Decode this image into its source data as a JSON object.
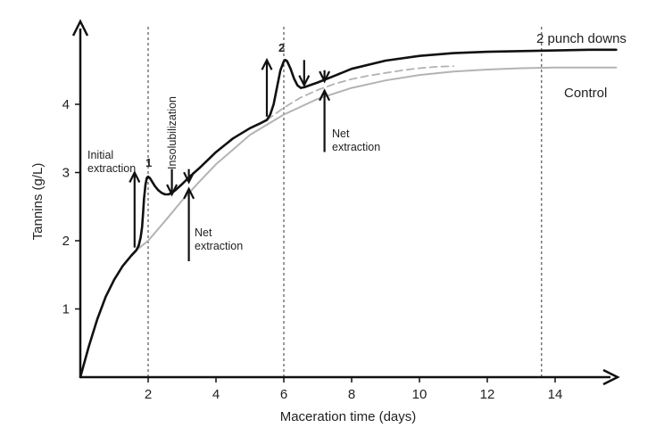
{
  "chart_data": {
    "type": "line",
    "title": "",
    "xlabel": "Maceration time (days)",
    "ylabel": "Tannins (g/L)",
    "xlim": [
      0,
      15.8
    ],
    "ylim": [
      0,
      5.2
    ],
    "x_ticks": [
      2,
      4,
      6,
      8,
      10,
      12,
      14
    ],
    "y_ticks": [
      1,
      2,
      3,
      4
    ],
    "grid": false,
    "reference_lines_x": [
      2,
      6,
      13.6
    ],
    "series": [
      {
        "name": "2 punch downs",
        "color": "#111111",
        "style": "solid",
        "x": [
          0,
          0.25,
          0.5,
          0.75,
          1.0,
          1.25,
          1.5,
          1.65,
          1.72,
          1.78,
          1.82,
          1.85,
          1.88,
          1.92,
          1.96,
          2.0,
          2.05,
          2.1,
          2.2,
          2.3,
          2.4,
          2.5,
          2.6,
          2.7,
          2.8,
          3.0,
          3.25,
          3.5,
          4.0,
          4.5,
          5.0,
          5.3,
          5.5,
          5.6,
          5.7,
          5.8,
          5.9,
          6.0,
          6.05,
          6.1,
          6.2,
          6.3,
          6.4,
          6.5,
          6.6,
          7.0,
          7.5,
          8.0,
          9.0,
          10.0,
          11.0,
          12.0,
          13.0,
          14.0,
          15.0,
          15.8
        ],
        "values": [
          0,
          0.45,
          0.85,
          1.18,
          1.43,
          1.63,
          1.78,
          1.86,
          1.93,
          2.05,
          2.2,
          2.4,
          2.62,
          2.82,
          2.92,
          2.94,
          2.92,
          2.88,
          2.8,
          2.74,
          2.7,
          2.68,
          2.68,
          2.7,
          2.74,
          2.83,
          2.95,
          3.06,
          3.3,
          3.5,
          3.65,
          3.72,
          3.77,
          3.85,
          4.0,
          4.25,
          4.5,
          4.63,
          4.65,
          4.63,
          4.52,
          4.38,
          4.28,
          4.24,
          4.25,
          4.32,
          4.42,
          4.52,
          4.64,
          4.71,
          4.75,
          4.77,
          4.78,
          4.79,
          4.8,
          4.8
        ]
      },
      {
        "name": "Control",
        "color": "#b3b3b3",
        "style": "solid",
        "x": [
          0,
          0.25,
          0.5,
          0.75,
          1.0,
          1.25,
          1.5,
          1.65,
          2.0,
          2.5,
          3.0,
          3.5,
          4.0,
          5.0,
          6.0,
          7.0,
          8.0,
          9.0,
          10.0,
          11.0,
          12.0,
          13.0,
          14.0,
          15.0,
          15.8
        ],
        "values": [
          0,
          0.45,
          0.85,
          1.18,
          1.43,
          1.63,
          1.78,
          1.86,
          2.0,
          2.29,
          2.59,
          2.86,
          3.12,
          3.55,
          3.85,
          4.08,
          4.24,
          4.35,
          4.43,
          4.48,
          4.51,
          4.53,
          4.54,
          4.54,
          4.54
        ]
      },
      {
        "name": "",
        "color": "#b3b3b3",
        "style": "dashed",
        "x": [
          5.5,
          6.0,
          6.5,
          7.0,
          7.5,
          8.0,
          8.5,
          9.0,
          9.5,
          10.0,
          10.5,
          11.0
        ],
        "values": [
          3.77,
          3.95,
          4.1,
          4.21,
          4.3,
          4.37,
          4.42,
          4.46,
          4.5,
          4.53,
          4.55,
          4.56
        ]
      }
    ],
    "series_labels": {
      "punch_downs": "2 punch downs",
      "control": "Control"
    },
    "annotations": {
      "initial_line1": "Initial",
      "initial_line2": "extraction",
      "insolubilization": "Insolubilization",
      "marker_1": "1",
      "marker_2": "2",
      "net1_line1": "Net",
      "net1_line2": "extraction",
      "net2_line1": "Net",
      "net2_line2": "extraction"
    },
    "arrows": [
      {
        "name": "initial-extraction-arrow",
        "x": 1.6,
        "from": 1.9,
        "to": 3.0
      },
      {
        "name": "insolubilization-arrow",
        "x": 2.7,
        "from": 3.05,
        "to": 2.68
      },
      {
        "name": "net-extraction-1-down-arrow",
        "x": 3.2,
        "from": 3.05,
        "to": 2.86
      },
      {
        "name": "net-extraction-1-up-arrow",
        "x": 3.2,
        "from": 1.7,
        "to": 2.76
      },
      {
        "name": "second-punch-arrow",
        "x": 5.5,
        "from": 3.82,
        "to": 4.65
      },
      {
        "name": "second-insolubilization-arrow",
        "x": 6.6,
        "from": 4.65,
        "to": 4.28
      },
      {
        "name": "net-extraction-2-down-arrow",
        "x": 7.2,
        "from": 4.5,
        "to": 4.34
      },
      {
        "name": "net-extraction-2-up-arrow",
        "x": 7.2,
        "from": 3.3,
        "to": 4.2
      }
    ]
  }
}
